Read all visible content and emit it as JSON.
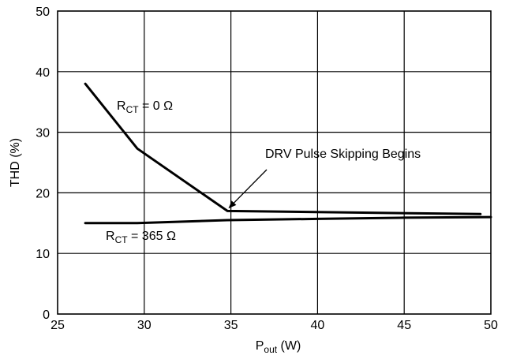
{
  "chart_data": {
    "type": "line",
    "xlabel_main": "P",
    "xlabel_sub": "out",
    "xlabel_unit": " (W)",
    "ylabel": "THD (%)",
    "xlim": [
      25,
      50
    ],
    "ylim": [
      0,
      50
    ],
    "xticks": [
      25,
      30,
      35,
      40,
      45,
      50
    ],
    "yticks": [
      0,
      10,
      20,
      30,
      40,
      50
    ],
    "grid": true,
    "series": [
      {
        "label_main": "R",
        "label_sub": "CT",
        "label_rest": " = 0 Ω",
        "x": [
          26.6,
          29.6,
          34.8,
          49.4
        ],
        "y": [
          38.0,
          27.3,
          17.0,
          16.5
        ]
      },
      {
        "label_main": "R",
        "label_sub": "CT",
        "label_rest": " = 365 Ω",
        "x": [
          26.6,
          29.6,
          34.8,
          40.0,
          45.0,
          50.0
        ],
        "y": [
          15.0,
          15.0,
          15.5,
          15.7,
          15.9,
          16.0
        ]
      }
    ],
    "annotations": [
      {
        "text": "DRV Pulse Skipping Begins",
        "arrow_to": [
          34.8,
          17.0
        ]
      }
    ]
  }
}
